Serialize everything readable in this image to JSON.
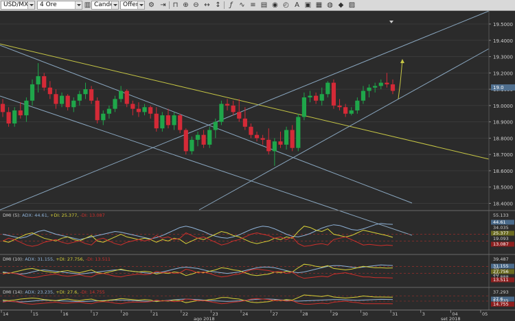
{
  "toolbar": {
    "symbol": "USD/MXN",
    "timeframe": "4 Ore",
    "chart_type": "Candele",
    "price_side": "Offerta",
    "icons": [
      "settings-icon",
      "play-icon",
      "lock-icon",
      "zoom-in-icon",
      "zoom-out-icon",
      "pan-icon",
      "crosshair-icon",
      "function-icon",
      "indicator-icon",
      "draw-icon",
      "eye-icon",
      "clock-icon",
      "text-icon",
      "image-icon",
      "layers-icon",
      "palette-icon",
      "save-icon"
    ]
  },
  "colors": {
    "background": "#2b2b2b",
    "bull": "#1fa64a",
    "bear": "#d42a37",
    "adx": "#8fb3d9",
    "plus_di": "#d8d238",
    "minus_di": "#d0302c",
    "trend_yellow": "#c7c745",
    "channel": "#8aa7c0"
  },
  "current_price_label": "19.0",
  "chart_data": {
    "type": "candlestick",
    "symbol": "USD/MXN",
    "price_ticks": [
      "19.5000",
      "19.4000",
      "19.3000",
      "19.2000",
      "19.1000",
      "19.0000",
      "18.9000",
      "18.8000",
      "18.7000",
      "18.6000",
      "18.5000",
      "18.4000"
    ],
    "ylim": [
      18.36,
      19.58
    ],
    "date_ticks": [
      "14",
      "15",
      "16",
      "17",
      "20",
      "21",
      "22",
      "23",
      "24",
      "27",
      "28",
      "29",
      "30",
      "31",
      "3",
      "04",
      "05"
    ],
    "month_labels": [
      "ago 2018",
      "set 2018"
    ],
    "candles": [
      [
        19.01,
        19.04,
        18.93,
        18.96
      ],
      [
        18.96,
        18.99,
        18.87,
        18.89
      ],
      [
        18.89,
        18.99,
        18.87,
        18.97
      ],
      [
        18.97,
        19.02,
        18.92,
        18.94
      ],
      [
        18.94,
        19.05,
        18.9,
        19.03
      ],
      [
        19.03,
        19.16,
        19.0,
        19.13
      ],
      [
        19.13,
        19.26,
        19.08,
        19.18
      ],
      [
        19.18,
        19.2,
        19.09,
        19.11
      ],
      [
        19.11,
        19.15,
        19.04,
        19.07
      ],
      [
        19.07,
        19.1,
        18.98,
        19.01
      ],
      [
        19.01,
        19.08,
        18.99,
        19.06
      ],
      [
        19.06,
        19.07,
        18.97,
        18.99
      ],
      [
        18.99,
        19.05,
        18.96,
        19.03
      ],
      [
        19.03,
        19.09,
        19.0,
        19.07
      ],
      [
        19.07,
        19.14,
        19.04,
        19.1
      ],
      [
        19.1,
        19.12,
        19.01,
        19.03
      ],
      [
        19.03,
        19.05,
        18.89,
        18.91
      ],
      [
        18.91,
        18.97,
        18.88,
        18.95
      ],
      [
        18.95,
        19.0,
        18.92,
        18.98
      ],
      [
        18.98,
        19.06,
        18.96,
        19.04
      ],
      [
        19.04,
        19.12,
        19.02,
        19.09
      ],
      [
        19.09,
        19.1,
        18.99,
        19.01
      ],
      [
        19.01,
        19.03,
        18.94,
        18.98
      ],
      [
        18.98,
        19.02,
        18.93,
        18.96
      ],
      [
        18.96,
        19.01,
        18.94,
        18.99
      ],
      [
        18.99,
        19.0,
        18.92,
        18.95
      ],
      [
        18.95,
        18.99,
        18.84,
        18.86
      ],
      [
        18.86,
        18.96,
        18.84,
        18.94
      ],
      [
        18.94,
        18.98,
        18.86,
        18.88
      ],
      [
        18.88,
        18.96,
        18.85,
        18.94
      ],
      [
        18.94,
        18.95,
        18.83,
        18.85
      ],
      [
        18.85,
        18.86,
        18.7,
        18.72
      ],
      [
        18.72,
        18.81,
        18.7,
        18.79
      ],
      [
        18.79,
        18.84,
        18.75,
        18.82
      ],
      [
        18.82,
        18.85,
        18.74,
        18.76
      ],
      [
        18.76,
        18.87,
        18.74,
        18.85
      ],
      [
        18.85,
        18.92,
        18.8,
        18.9
      ],
      [
        18.9,
        19.03,
        18.88,
        19.01
      ],
      [
        19.01,
        19.04,
        18.97,
        19.0
      ],
      [
        19.0,
        19.03,
        18.94,
        18.96
      ],
      [
        18.96,
        19.04,
        18.9,
        18.92
      ],
      [
        18.92,
        18.99,
        18.85,
        18.87
      ],
      [
        18.87,
        18.89,
        18.8,
        18.82
      ],
      [
        18.82,
        18.84,
        18.78,
        18.8
      ],
      [
        18.8,
        18.82,
        18.76,
        18.79
      ],
      [
        18.79,
        18.86,
        18.7,
        18.72
      ],
      [
        18.72,
        18.8,
        18.63,
        18.78
      ],
      [
        18.78,
        18.84,
        18.74,
        18.76
      ],
      [
        18.76,
        18.87,
        18.73,
        18.85
      ],
      [
        18.85,
        18.88,
        18.72,
        18.74
      ],
      [
        18.74,
        18.95,
        18.72,
        18.93
      ],
      [
        18.93,
        19.08,
        18.91,
        19.05
      ],
      [
        19.05,
        19.09,
        19.02,
        19.06
      ],
      [
        19.06,
        19.08,
        19.01,
        19.03
      ],
      [
        19.03,
        19.11,
        19.0,
        19.07
      ],
      [
        19.07,
        19.15,
        19.05,
        19.14
      ],
      [
        19.14,
        19.16,
        18.98,
        19.0
      ],
      [
        19.0,
        19.04,
        18.97,
        18.99
      ],
      [
        18.99,
        19.01,
        18.93,
        18.95
      ],
      [
        18.95,
        18.99,
        18.94,
        18.97
      ],
      [
        18.97,
        19.05,
        18.95,
        19.03
      ],
      [
        19.03,
        19.12,
        19.01,
        19.09
      ],
      [
        19.09,
        19.13,
        19.05,
        19.11
      ],
      [
        19.11,
        19.14,
        19.08,
        19.12
      ],
      [
        19.12,
        19.16,
        19.1,
        19.14
      ],
      [
        19.14,
        19.2,
        19.11,
        19.13
      ],
      [
        19.13,
        19.16,
        19.07,
        19.09
      ]
    ],
    "indicators": [
      {
        "label": "DMI (5): ADX: 44.61, +DI: 25.377, -DI: 13.087",
        "adx_label": "ADX: 44.61,",
        "plus_label": "+DI: 25.377,",
        "minus_label": "-DI: 13.087",
        "scale_top": "55.133",
        "levels": [
          "44.61",
          "34.035",
          "25.377",
          "19.093",
          "13.087"
        ],
        "ylim": [
          5,
          60
        ],
        "adx": [
          30,
          28,
          26,
          24,
          26,
          30,
          34,
          36,
          33,
          30,
          28,
          26,
          24,
          22,
          24,
          26,
          28,
          30,
          32,
          34,
          33,
          31,
          29,
          27,
          25,
          23,
          25,
          28,
          32,
          36,
          40,
          42,
          40,
          37,
          34,
          30,
          27,
          25,
          24,
          26,
          29,
          33,
          37,
          40,
          42,
          41,
          38,
          34,
          30,
          27,
          26,
          28,
          31,
          35,
          39,
          42,
          44,
          43,
          40,
          37,
          36,
          38,
          41,
          44,
          46,
          45,
          44.6
        ],
        "plus_di": [
          20,
          18,
          22,
          26,
          30,
          32,
          28,
          24,
          22,
          20,
          24,
          26,
          22,
          20,
          24,
          28,
          20,
          18,
          22,
          26,
          30,
          26,
          24,
          22,
          24,
          22,
          18,
          22,
          20,
          24,
          22,
          16,
          20,
          24,
          22,
          26,
          30,
          34,
          32,
          28,
          26,
          22,
          18,
          16,
          18,
          20,
          24,
          22,
          26,
          24,
          34,
          42,
          40,
          36,
          34,
          38,
          30,
          28,
          26,
          28,
          32,
          36,
          34,
          32,
          30,
          28,
          25.4
        ],
        "minus_di": [
          20,
          24,
          22,
          18,
          14,
          12,
          14,
          18,
          20,
          22,
          18,
          16,
          18,
          20,
          16,
          14,
          22,
          24,
          20,
          16,
          14,
          18,
          20,
          22,
          20,
          22,
          28,
          24,
          26,
          22,
          24,
          32,
          28,
          24,
          26,
          22,
          18,
          14,
          16,
          20,
          22,
          26,
          30,
          32,
          30,
          28,
          24,
          26,
          22,
          26,
          16,
          12,
          13,
          15,
          16,
          14,
          22,
          24,
          26,
          22,
          18,
          14,
          15,
          14,
          13,
          14,
          13.1
        ]
      },
      {
        "label": "DMI (10): ADX: 31.155, +DI: 27.756, -DI: 13.511",
        "adx_label": "ADX: 31.155,",
        "plus_label": "+DI: 27.756,",
        "minus_label": "-DI: 13.511",
        "scale_top": "39.487",
        "levels": [
          "31.155",
          "30",
          "27.756",
          "20",
          "17.888",
          "13.511"
        ],
        "ylim": [
          5,
          42
        ],
        "adx": [
          22,
          21,
          20,
          19,
          20,
          22,
          24,
          25,
          24,
          23,
          22,
          21,
          20,
          19,
          20,
          21,
          22,
          23,
          24,
          25,
          25,
          24,
          23,
          22,
          21,
          20,
          21,
          22,
          24,
          26,
          28,
          29,
          28,
          27,
          25,
          23,
          22,
          21,
          20,
          21,
          22,
          24,
          26,
          28,
          29,
          29,
          28,
          26,
          24,
          22,
          21,
          22,
          24,
          26,
          28,
          30,
          31,
          31,
          30,
          29,
          28,
          29,
          30,
          31,
          32,
          31.5,
          31.2
        ],
        "plus_di": [
          21,
          20,
          22,
          24,
          26,
          27,
          25,
          23,
          22,
          21,
          23,
          24,
          22,
          21,
          23,
          25,
          21,
          20,
          22,
          24,
          26,
          24,
          23,
          22,
          23,
          22,
          19,
          21,
          20,
          22,
          21,
          17,
          19,
          22,
          21,
          23,
          25,
          28,
          27,
          25,
          24,
          21,
          18,
          17,
          18,
          19,
          22,
          21,
          23,
          22,
          28,
          33,
          32,
          30,
          29,
          31,
          27,
          26,
          25,
          26,
          28,
          30,
          29,
          28,
          28,
          27.5,
          27.8
        ],
        "minus_di": [
          19,
          21,
          20,
          18,
          15,
          14,
          15,
          17,
          18,
          19,
          17,
          16,
          17,
          18,
          16,
          15,
          19,
          20,
          18,
          16,
          15,
          17,
          18,
          19,
          18,
          19,
          23,
          21,
          22,
          20,
          21,
          26,
          24,
          21,
          22,
          20,
          17,
          15,
          16,
          18,
          19,
          22,
          25,
          26,
          25,
          24,
          22,
          23,
          20,
          22,
          16,
          13,
          14,
          15,
          16,
          15,
          19,
          20,
          21,
          19,
          17,
          15,
          15,
          14,
          14,
          13.8,
          13.5
        ]
      },
      {
        "label": "DMI (14): ADX: 23.235, +DI: 27.6, -DI: 14.755",
        "adx_label": "ADX: 23.235,",
        "plus_label": "+DI: 27.6,",
        "minus_label": "-DI: 14.755",
        "scale_top": "37.293",
        "levels": [
          "27.6",
          "23.235",
          "18.904",
          "14.755"
        ],
        "ylim": [
          8,
          40
        ],
        "adx": [
          20,
          19.5,
          19,
          18.5,
          19,
          20,
          21,
          22,
          21.5,
          21,
          20.5,
          20,
          19.5,
          19,
          19.5,
          20,
          20.5,
          21,
          21.5,
          22,
          22,
          21.5,
          21,
          20.5,
          20,
          19.5,
          20,
          20.5,
          21.5,
          22.5,
          23.5,
          24,
          23.5,
          23,
          22,
          21,
          20.5,
          20,
          19.5,
          20,
          20.5,
          21.5,
          22.5,
          23.5,
          24,
          24,
          23.5,
          22.5,
          21.5,
          20.5,
          20,
          20.5,
          21,
          21.5,
          22,
          22.5,
          23,
          23,
          22.5,
          22,
          21.5,
          22,
          22.5,
          23,
          23.5,
          23.3,
          23.2
        ],
        "plus_di": [
          22,
          21,
          22,
          24,
          25,
          26,
          25,
          23,
          22,
          21,
          23,
          24,
          22,
          21,
          23,
          24,
          21,
          20,
          22,
          23,
          25,
          24,
          23,
          22,
          23,
          22,
          19,
          21,
          20,
          22,
          21,
          17,
          19,
          21,
          21,
          23,
          24,
          27,
          27,
          25,
          24,
          21,
          18,
          17,
          18,
          19,
          22,
          21,
          23,
          22,
          27,
          32,
          31,
          30,
          29,
          31,
          28,
          27,
          26,
          27,
          28,
          30,
          29,
          28,
          28,
          27.8,
          27.6
        ],
        "minus_di": [
          18,
          20,
          19,
          17,
          15,
          14,
          15,
          16,
          17,
          18,
          16,
          16,
          17,
          18,
          16,
          15,
          18,
          19,
          18,
          16,
          15,
          17,
          18,
          18,
          18,
          19,
          22,
          20,
          21,
          19,
          20,
          24,
          23,
          21,
          21,
          19,
          17,
          15,
          16,
          18,
          19,
          21,
          24,
          25,
          24,
          23,
          21,
          22,
          20,
          21,
          16,
          14,
          14,
          15,
          16,
          15,
          18,
          19,
          20,
          18,
          17,
          15,
          15,
          15,
          15,
          14.9,
          14.8
        ]
      }
    ]
  }
}
